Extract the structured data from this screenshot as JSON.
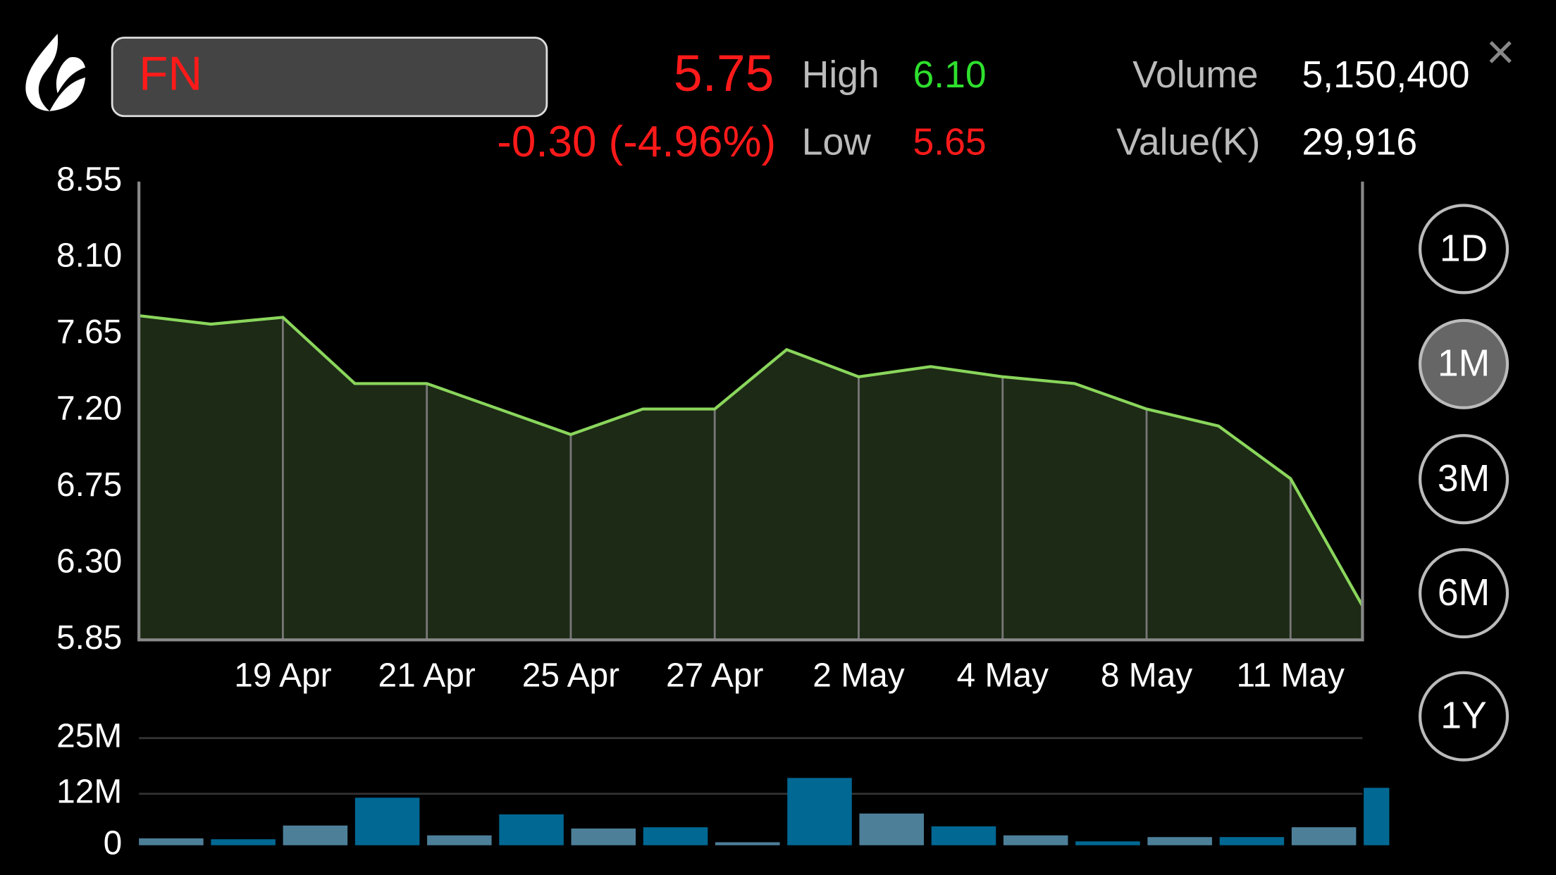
{
  "header": {
    "symbol": "FN",
    "last": "5.75",
    "change": "-0.30 (-4.96%)",
    "high_label": "High",
    "high": "6.10",
    "low_label": "Low",
    "low": "5.65",
    "volume_label": "Volume",
    "volume": "5,150,400",
    "value_label": "Value(K)",
    "value": "29,916",
    "close": "×"
  },
  "periods": [
    "1D",
    "1M",
    "3M",
    "6M",
    "1Y"
  ],
  "chart_data": [
    {
      "type": "area",
      "categories": [
        null,
        null,
        "19 Apr",
        null,
        "21 Apr",
        null,
        "25 Apr",
        null,
        "27 Apr",
        null,
        "2 May",
        null,
        "4 May",
        null,
        "8 May",
        null,
        "11 May",
        null
      ],
      "values": [
        7.76,
        7.71,
        7.75,
        7.36,
        7.36,
        7.21,
        7.06,
        7.21,
        7.21,
        7.56,
        7.4,
        7.46,
        7.4,
        7.36,
        7.21,
        7.11,
        6.8,
        6.05
      ],
      "color": "#8ad65c",
      "fill": "#1d2a16",
      "ylim": [
        5.85,
        8.55
      ],
      "yticks": [
        5.85,
        {
          "value": 6.3,
          "label": "6.30"
        },
        6.75,
        {
          "value": 7.2,
          "label": "7.20"
        },
        7.65,
        {
          "value": 8.1,
          "label": "8.10"
        },
        8.55
      ]
    },
    {
      "type": "bar",
      "values": [
        1.6,
        1.4,
        4.6,
        11.1,
        2.3,
        7.2,
        3.9,
        4.2,
        0.7,
        15.7,
        7.4,
        4.4,
        2.3,
        0.9,
        1.9,
        1.9,
        4.2,
        13.4
      ],
      "colors": [
        "#4d7f99",
        "#006893"
      ],
      "ylim": [
        0,
        25
      ],
      "yticks": [
        0,
        {
          "value": 12,
          "label": "12M"
        },
        {
          "value": 25,
          "label": "25M"
        }
      ],
      "grid": true
    }
  ]
}
